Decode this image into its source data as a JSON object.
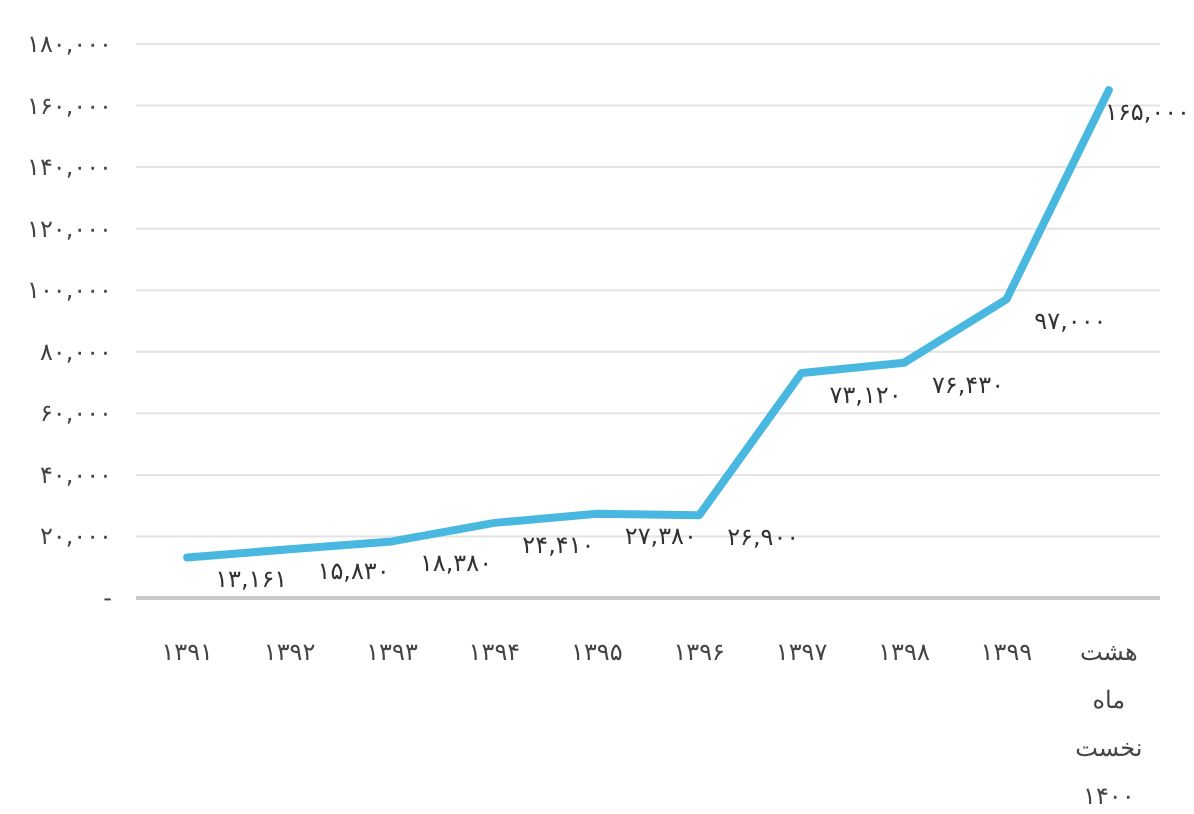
{
  "chart_data": {
    "type": "line",
    "categories": [
      "۱۳۹۱",
      "۱۳۹۲",
      "۱۳۹۳",
      "۱۳۹۴",
      "۱۳۹۵",
      "۱۳۹۶",
      "۱۳۹۷",
      "۱۳۹۸",
      "۱۳۹۹",
      "هشت ماه نخست ۱۴۰۰"
    ],
    "series": [
      {
        "color": "#48b8e0",
        "values": [
          13161,
          15830,
          18380,
          24410,
          27380,
          26900,
          73120,
          76430,
          97000,
          165000
        ],
        "value_labels": [
          "۱۳,۱۶۱",
          "۱۵,۸۳۰",
          "۱۸,۳۸۰",
          "۲۴,۴۱۰",
          "۲۷,۳۸۰",
          "۲۶,۹۰۰",
          "۷۳,۱۲۰",
          "۷۶,۴۳۰",
          "۹۷,۰۰۰",
          "۱۶۵,۰۰۰"
        ]
      }
    ],
    "ylim": [
      0,
      180000
    ],
    "yticks": [
      {
        "value": 0,
        "label": "-"
      },
      {
        "value": 20000,
        "label": "۲۰,۰۰۰"
      },
      {
        "value": 40000,
        "label": "۴۰,۰۰۰"
      },
      {
        "value": 60000,
        "label": "۶۰,۰۰۰"
      },
      {
        "value": 80000,
        "label": "۸۰,۰۰۰"
      },
      {
        "value": 100000,
        "label": "۱۰۰,۰۰۰"
      },
      {
        "value": 120000,
        "label": "۱۲۰,۰۰۰"
      },
      {
        "value": 140000,
        "label": "۱۴۰,۰۰۰"
      },
      {
        "value": 160000,
        "label": "۱۶۰,۰۰۰"
      },
      {
        "value": 180000,
        "label": "۱۸۰,۰۰۰"
      }
    ],
    "grid": "y",
    "marker": "none",
    "line_style": "solid"
  }
}
